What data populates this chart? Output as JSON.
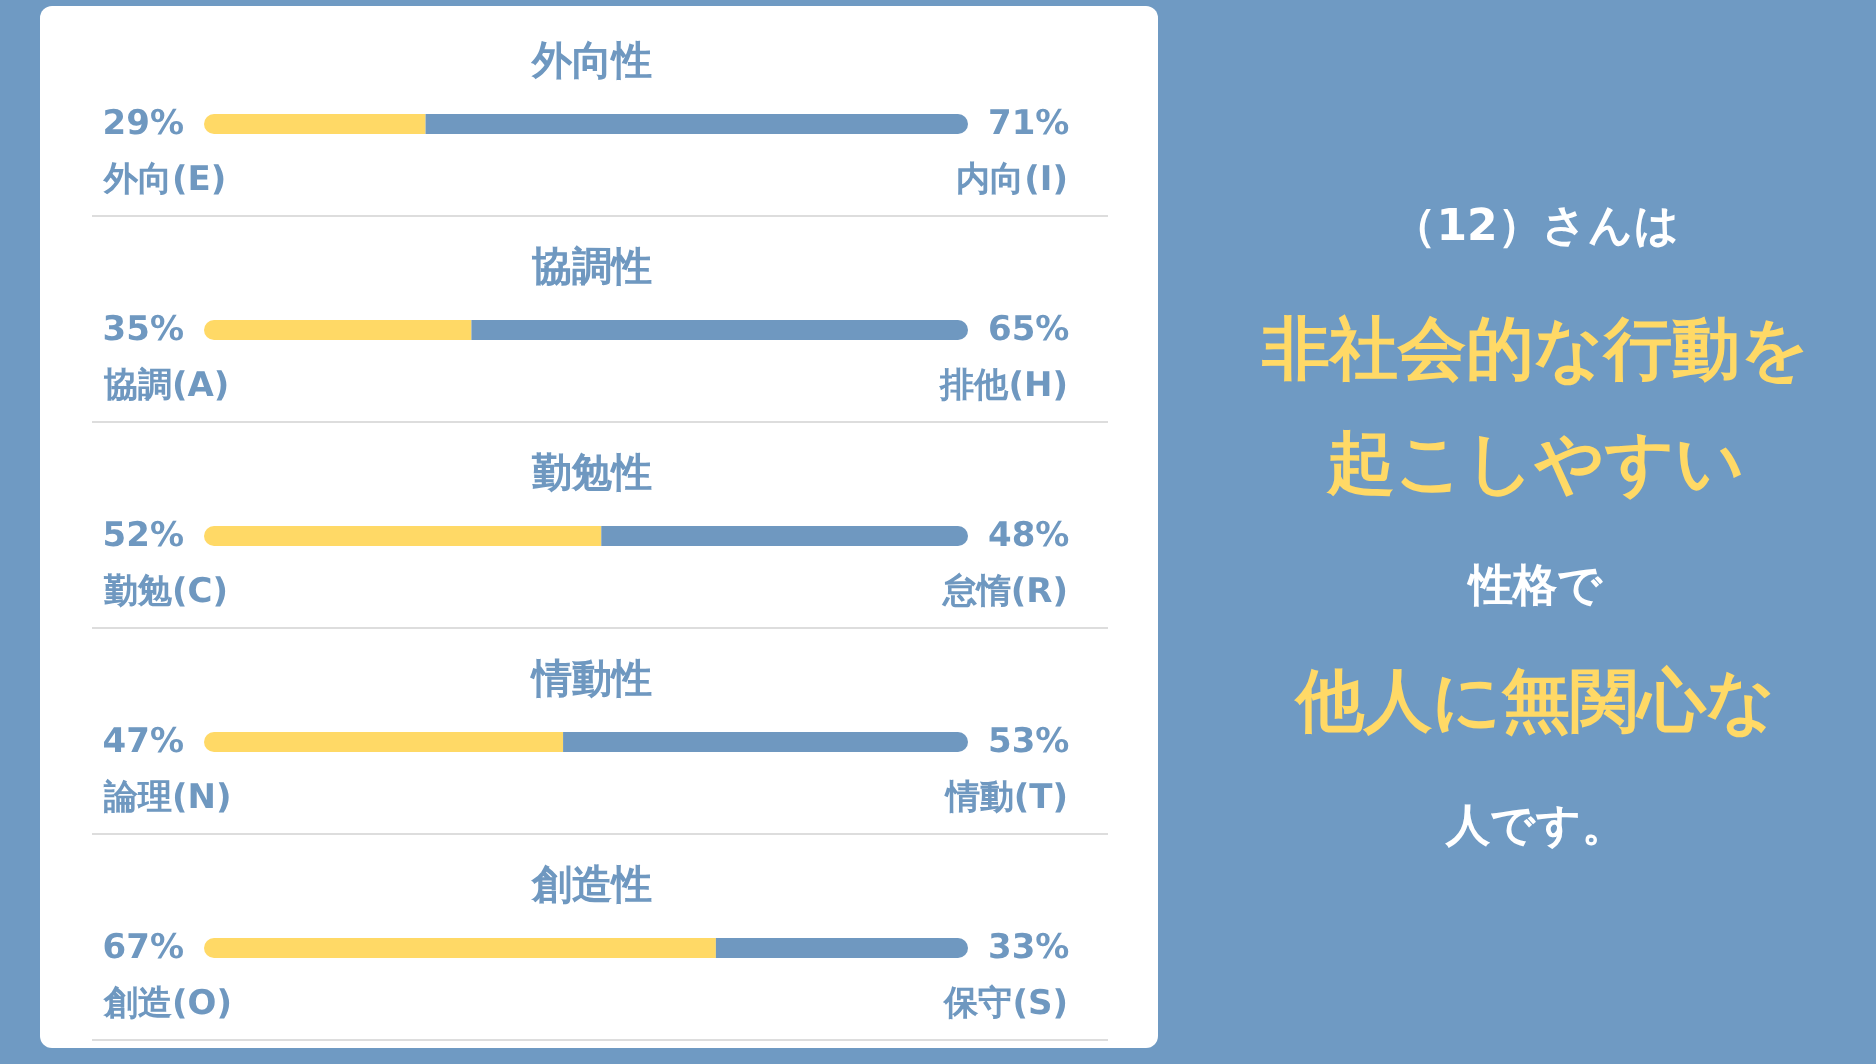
{
  "chart_data": [
    {
      "type": "bar",
      "orientation": "horizontal",
      "stacked": true,
      "title": "外向性",
      "categories": [
        null
      ],
      "series": [
        {
          "name": "外向(E)",
          "color": "#ffd966",
          "values": [
            29
          ],
          "value_labels": [
            "29%"
          ]
        },
        {
          "name": "内向(I)",
          "color": "#6f98c0",
          "values": [
            71
          ],
          "value_labels": [
            "71%"
          ]
        }
      ]
    },
    {
      "type": "bar",
      "orientation": "horizontal",
      "stacked": true,
      "title": "協調性",
      "categories": [
        null
      ],
      "series": [
        {
          "name": "協調(A)",
          "color": "#ffd966",
          "values": [
            35
          ],
          "value_labels": [
            "35%"
          ]
        },
        {
          "name": "排他(H)",
          "color": "#6f98c0",
          "values": [
            65
          ],
          "value_labels": [
            "65%"
          ]
        }
      ]
    },
    {
      "type": "bar",
      "orientation": "horizontal",
      "stacked": true,
      "title": "勤勉性",
      "categories": [
        null
      ],
      "series": [
        {
          "name": "勤勉(C)",
          "color": "#ffd966",
          "values": [
            52
          ],
          "value_labels": [
            "52%"
          ]
        },
        {
          "name": "怠惰(R)",
          "color": "#6f98c0",
          "values": [
            48
          ],
          "value_labels": [
            "48%"
          ]
        }
      ]
    },
    {
      "type": "bar",
      "orientation": "horizontal",
      "stacked": true,
      "title": "情動性",
      "categories": [
        null
      ],
      "series": [
        {
          "name": "論理(N)",
          "color": "#ffd966",
          "values": [
            47
          ],
          "value_labels": [
            "47%"
          ]
        },
        {
          "name": "情動(T)",
          "color": "#6f98c0",
          "values": [
            53
          ],
          "value_labels": [
            "53%"
          ]
        }
      ]
    },
    {
      "type": "bar",
      "orientation": "horizontal",
      "stacked": true,
      "title": "創造性",
      "categories": [
        null
      ],
      "series": [
        {
          "name": "創造(O)",
          "color": "#ffd966",
          "values": [
            67
          ],
          "value_labels": [
            "67%"
          ]
        },
        {
          "name": "保守(S)",
          "color": "#6f98c0",
          "values": [
            33
          ],
          "value_labels": [
            "33%"
          ]
        }
      ]
    },
    {
      "type": "other",
      "title": "（12）さんは",
      "annotations": [
        "非社会的な行動を",
        "起こしやすい",
        "性格で",
        "他人に無関心な",
        "人です。"
      ]
    }
  ]
}
